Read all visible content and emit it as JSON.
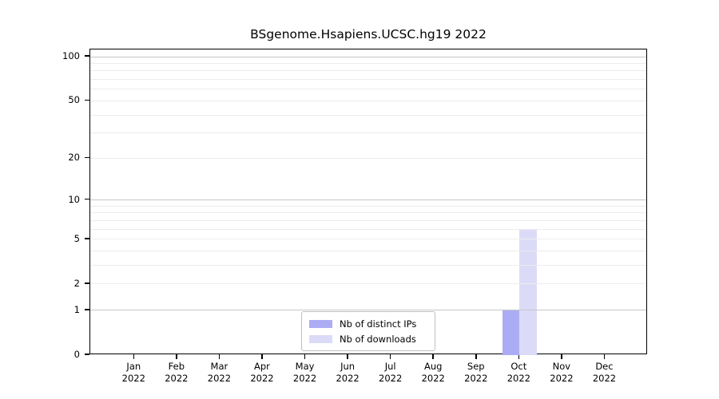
{
  "chart_data": {
    "type": "bar",
    "title": "BSgenome.Hsapiens.UCSC.hg19 2022",
    "categories": [
      "Jan",
      "Feb",
      "Mar",
      "Apr",
      "May",
      "Jun",
      "Jul",
      "Aug",
      "Sep",
      "Oct",
      "Nov",
      "Dec"
    ],
    "category_year": "2022",
    "series": [
      {
        "name": "Nb of distinct IPs",
        "color": "#acacf5",
        "values": [
          0,
          0,
          0,
          0,
          0,
          0,
          0,
          0,
          0,
          1,
          0,
          0
        ]
      },
      {
        "name": "Nb of downloads",
        "color": "#dbdbf8",
        "values": [
          0,
          0,
          0,
          0,
          0,
          0,
          0,
          0,
          0,
          6,
          0,
          0
        ]
      }
    ],
    "xlabel": "",
    "ylabel": "",
    "yscale": "log1p",
    "ylim": [
      0,
      112
    ],
    "yticks": [
      0,
      1,
      2,
      5,
      10,
      20,
      50,
      100
    ],
    "major_gridlines": [
      1,
      10,
      100
    ],
    "minor_gridlines": [
      2,
      3,
      4,
      5,
      6,
      7,
      8,
      9,
      20,
      30,
      40,
      50,
      60,
      70,
      80,
      90
    ],
    "grid": true,
    "legend_position": "bottom-center"
  },
  "colors": {
    "background": "#ffffff",
    "axis": "#000000",
    "major_grid": "#c6c6c6",
    "minor_grid": "#ececec",
    "legend_border": "#c0c0c0"
  }
}
